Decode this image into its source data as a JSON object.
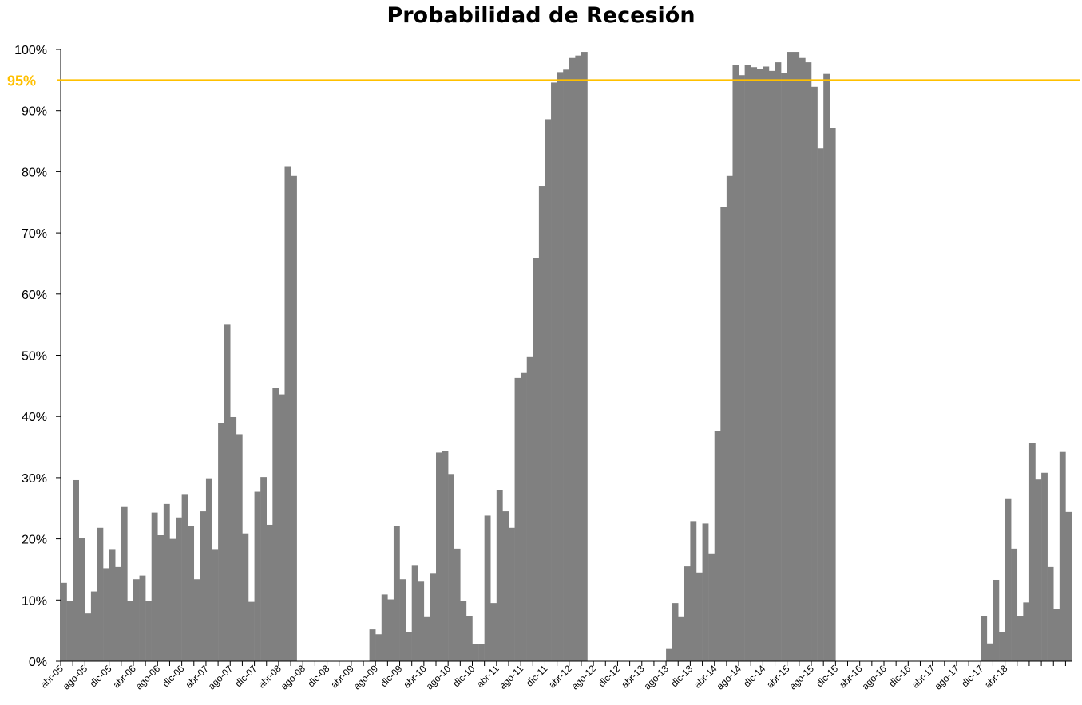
{
  "chart_data": {
    "type": "bar",
    "title": "Probabilidad de Recesión",
    "xlabel": "",
    "ylabel": "",
    "ylim": [
      0,
      1
    ],
    "y_ticks": [
      "0%",
      "10%",
      "20%",
      "30%",
      "40%",
      "50%",
      "60%",
      "70%",
      "80%",
      "90%",
      "100%"
    ],
    "x_tick_labels": [
      "abr-05",
      "ago-05",
      "dic-05",
      "abr-06",
      "ago-06",
      "dic-06",
      "abr-07",
      "ago-07",
      "dic-07",
      "abr-08",
      "ago-08",
      "dic-08",
      "abr-09",
      "ago-09",
      "dic-09",
      "abr-10",
      "ago-10",
      "dic-10",
      "abr-11",
      "ago-11",
      "dic-11",
      "abr-12",
      "ago-12",
      "dic-12",
      "abr-13",
      "ago-13",
      "dic-13",
      "abr-14",
      "ago-14",
      "dic-14",
      "abr-15",
      "ago-15",
      "dic-15",
      "abr-16",
      "ago-16",
      "dic-16",
      "abr-17",
      "ago-17",
      "dic-17",
      "abr-18"
    ],
    "series": [
      {
        "color": "#808080",
        "values": [
          0.128,
          0.098,
          0.296,
          0.202,
          0.078,
          0.114,
          0.218,
          0.152,
          0.182,
          0.154,
          0.252,
          0.098,
          0.134,
          0.14,
          0.098,
          0.243,
          0.206,
          0.257,
          0.2,
          0.235,
          0.272,
          0.221,
          0.134,
          0.245,
          0.299,
          0.182,
          0.389,
          0.551,
          0.399,
          0.371,
          0.209,
          0.097,
          0.277,
          0.301,
          0.223,
          0.446,
          0.436,
          0.809,
          0.793,
          0,
          0,
          0,
          0,
          0,
          0,
          0,
          0,
          0,
          0,
          0,
          0,
          0.052,
          0.044,
          0.109,
          0.101,
          0.221,
          0.134,
          0.048,
          0.156,
          0.13,
          0.072,
          0.143,
          0.341,
          0.343,
          0.306,
          0.184,
          0.098,
          0.074,
          0.028,
          0.028,
          0.238,
          0.095,
          0.28,
          0.245,
          0.218,
          0.463,
          0.471,
          0.497,
          0.659,
          0.777,
          0.886,
          0.946,
          0.963,
          0.967,
          0.986,
          0.99,
          0.996,
          0,
          0,
          0,
          0,
          0,
          0,
          0,
          0,
          0,
          0,
          0,
          0,
          0,
          0.02,
          0.095,
          0.072,
          0.155,
          0.229,
          0.145,
          0.225,
          0.175,
          0.376,
          0.743,
          0.793,
          0.974,
          0.958,
          0.975,
          0.971,
          0.968,
          0.972,
          0.965,
          0.979,
          0.962,
          0.996,
          0.996,
          0.986,
          0.979,
          0.939,
          0.838,
          0.96,
          0.872,
          0,
          0,
          0,
          0,
          0,
          0,
          0,
          0,
          0,
          0,
          0,
          0,
          0,
          0,
          0,
          0,
          0,
          0,
          0,
          0,
          0,
          0,
          0,
          0,
          0.074,
          0.029,
          0.133,
          0.048,
          0.265,
          0.184,
          0.073,
          0.096,
          0.357,
          0.297,
          0.308,
          0.154,
          0.085,
          0.342,
          0.244
        ]
      }
    ],
    "reference_line": {
      "value": 0.95,
      "label": "95%",
      "color": "#FFC000"
    },
    "grid": false,
    "legend": "none"
  }
}
